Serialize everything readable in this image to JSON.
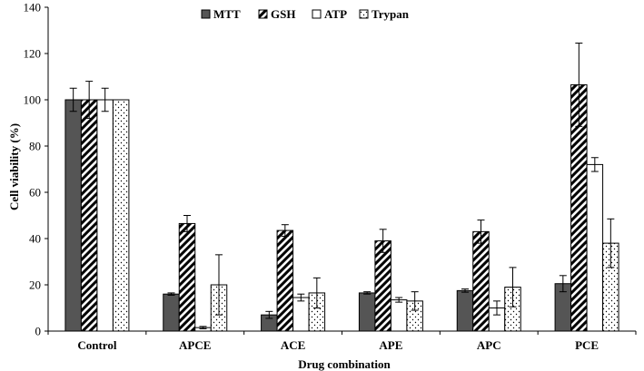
{
  "chart_data": {
    "type": "bar",
    "title": "",
    "xlabel": "Drug combination",
    "ylabel": "Cell viability (%)",
    "ylim": [
      0,
      140
    ],
    "yticks": [
      0,
      20,
      40,
      60,
      80,
      100,
      120,
      140
    ],
    "grid": false,
    "legend_position": "top-center",
    "categories": [
      "Control",
      "APCE",
      "ACE",
      "APE",
      "APC",
      "PCE"
    ],
    "series": [
      {
        "name": "MTT",
        "fill": "dark",
        "color": "#555555",
        "values": [
          100,
          16,
          7,
          16.5,
          17.5,
          20.5
        ],
        "errors": [
          5,
          0.5,
          1.5,
          0.5,
          0.7,
          3.5
        ]
      },
      {
        "name": "GSH",
        "fill": "hatch",
        "color": "#000000",
        "values": [
          100,
          46.5,
          43.5,
          39,
          43,
          106.5
        ],
        "errors": [
          8,
          3.5,
          2.5,
          5,
          5,
          18
        ]
      },
      {
        "name": "ATP",
        "fill": "white",
        "color": "#ffffff",
        "values": [
          100,
          1.5,
          14.5,
          13.5,
          10,
          72
        ],
        "errors": [
          5,
          0.5,
          1.5,
          1,
          3,
          3
        ]
      },
      {
        "name": "Trypan",
        "fill": "dots",
        "color": "#ffffff",
        "values": [
          100,
          20,
          16.5,
          13,
          19,
          38
        ],
        "errors": [
          0,
          13,
          6.5,
          4,
          8.5,
          10.5
        ]
      }
    ]
  }
}
